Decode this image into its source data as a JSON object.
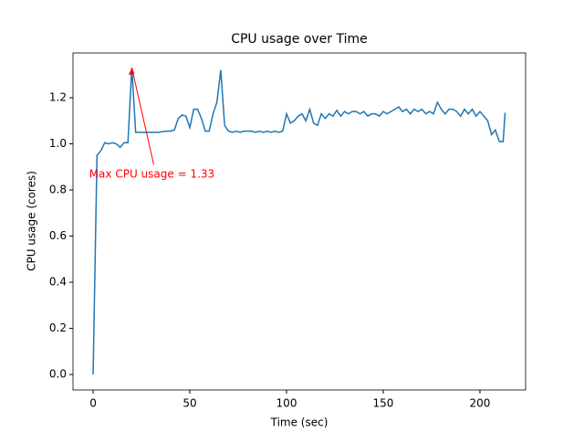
{
  "chart_data": {
    "type": "line",
    "title": "CPU usage over Time",
    "xlabel": "Time (sec)",
    "ylabel": "CPU usage (cores)",
    "x": [
      0,
      2,
      4,
      6,
      8,
      10,
      12,
      14,
      16,
      18,
      20,
      22,
      24,
      26,
      28,
      30,
      32,
      34,
      36,
      38,
      40,
      42,
      44,
      46,
      48,
      50,
      52,
      54,
      56,
      58,
      60,
      62,
      64,
      66,
      68,
      70,
      72,
      74,
      76,
      78,
      80,
      82,
      84,
      86,
      88,
      90,
      92,
      94,
      96,
      98,
      100,
      102,
      104,
      106,
      108,
      110,
      112,
      114,
      116,
      118,
      120,
      122,
      124,
      126,
      128,
      130,
      132,
      134,
      136,
      138,
      140,
      142,
      144,
      146,
      148,
      150,
      152,
      154,
      156,
      158,
      160,
      162,
      164,
      166,
      168,
      170,
      172,
      174,
      176,
      178,
      180,
      182,
      184,
      186,
      188,
      190,
      192,
      194,
      196,
      198,
      200,
      202,
      204,
      206,
      208,
      210,
      212,
      213
    ],
    "series": [
      {
        "name": "CPU usage",
        "color": "#1f77b4",
        "values": [
          0,
          0.95,
          0.97,
          1.005,
          1.0,
          1.005,
          1.0,
          0.985,
          1.005,
          1.005,
          1.33,
          1.05,
          1.05,
          1.05,
          1.05,
          1.05,
          1.05,
          1.05,
          1.053,
          1.055,
          1.055,
          1.06,
          1.11,
          1.125,
          1.12,
          1.07,
          1.15,
          1.15,
          1.11,
          1.055,
          1.055,
          1.13,
          1.18,
          1.32,
          1.08,
          1.055,
          1.05,
          1.055,
          1.05,
          1.055,
          1.055,
          1.055,
          1.05,
          1.055,
          1.05,
          1.055,
          1.05,
          1.055,
          1.05,
          1.055,
          1.13,
          1.09,
          1.1,
          1.12,
          1.13,
          1.1,
          1.15,
          1.09,
          1.08,
          1.13,
          1.11,
          1.13,
          1.12,
          1.145,
          1.12,
          1.14,
          1.13,
          1.14,
          1.14,
          1.13,
          1.14,
          1.12,
          1.13,
          1.13,
          1.12,
          1.14,
          1.13,
          1.14,
          1.15,
          1.16,
          1.14,
          1.15,
          1.13,
          1.15,
          1.14,
          1.15,
          1.13,
          1.14,
          1.13,
          1.18,
          1.15,
          1.13,
          1.15,
          1.15,
          1.14,
          1.12,
          1.15,
          1.13,
          1.15,
          1.12,
          1.14,
          1.12,
          1.1,
          1.04,
          1.06,
          1.01,
          1.01,
          1.135
        ]
      }
    ],
    "xlim": [
      -10.4,
      223.6
    ],
    "ylim": [
      -0.067,
      1.394
    ],
    "xticks": [
      0,
      50,
      100,
      150,
      200
    ],
    "yticks": [
      {
        "value": 0,
        "label": "0.0"
      },
      {
        "value": 0.2,
        "label": "0.2"
      },
      {
        "value": 0.4,
        "label": "0.4"
      },
      {
        "value": 0.6,
        "label": "0.6"
      },
      {
        "value": 0.8,
        "label": "0.8"
      },
      {
        "value": 1.0,
        "label": "1.0"
      },
      {
        "value": 1.2,
        "label": "1.2"
      }
    ],
    "annotation": {
      "text": "Max CPU usage = 1.33",
      "x": 20,
      "y": 1.33,
      "color": "red"
    }
  }
}
